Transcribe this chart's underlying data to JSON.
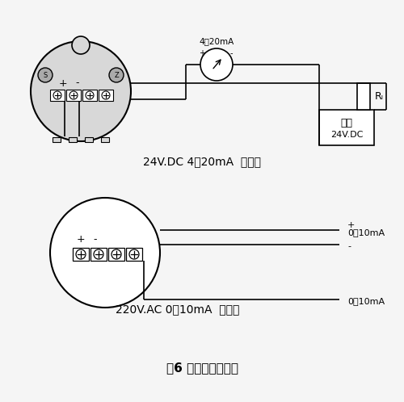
{
  "bg_color": "#f5f5f5",
  "line_color": "#000000",
  "title": "图6 电远传型接线图",
  "label_top": "24V.DC 4～20mA  两线制",
  "label_bottom": "220V.AC 0～10mA  四线制",
  "ammeter_label": "4～20mA",
  "power_label1": "电源",
  "power_label2": "24V.DC",
  "rl_label": "Rₗ",
  "plus": "+",
  "minus": "-",
  "output1_top": "0～10mA",
  "output1_mid": "-",
  "output1_plus": "+",
  "output2_bot": "0～10mA"
}
